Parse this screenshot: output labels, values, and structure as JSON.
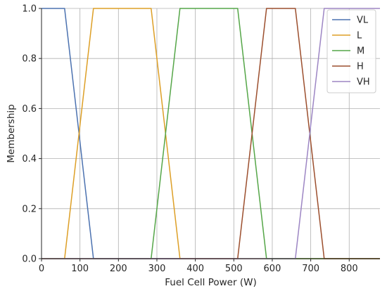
{
  "chart_data": {
    "type": "line",
    "title": "",
    "xlabel": "Fuel Cell Power (W)",
    "ylabel": "Membership",
    "xlim": [
      0,
      880
    ],
    "ylim": [
      0,
      1.0
    ],
    "xticks": [
      0,
      100,
      200,
      300,
      400,
      500,
      600,
      700,
      800
    ],
    "yticks": [
      0.0,
      0.2,
      0.4,
      0.6,
      0.8,
      1.0
    ],
    "xtick_labels": [
      "0",
      "100",
      "200",
      "300",
      "400",
      "500",
      "600",
      "700",
      "800"
    ],
    "ytick_labels": [
      "0.0",
      "0.2",
      "0.4",
      "0.6",
      "0.8",
      "1.0"
    ],
    "grid": true,
    "legend_position": "top-right",
    "series": [
      {
        "name": "VL",
        "color": "#4c72b0",
        "x": [
          0,
          60,
          135,
          880
        ],
        "y": [
          1,
          1,
          0,
          0
        ]
      },
      {
        "name": "L",
        "color": "#dd9f26",
        "x": [
          0,
          60,
          135,
          285,
          360,
          880
        ],
        "y": [
          0,
          0,
          1,
          1,
          0,
          0
        ]
      },
      {
        "name": "M",
        "color": "#55a648",
        "x": [
          0,
          285,
          360,
          510,
          585,
          880
        ],
        "y": [
          0,
          0,
          1,
          1,
          0,
          0
        ]
      },
      {
        "name": "H",
        "color": "#9c4f2e",
        "x": [
          0,
          510,
          585,
          660,
          735,
          880
        ],
        "y": [
          0,
          0,
          1,
          1,
          0,
          0
        ]
      },
      {
        "name": "VH",
        "color": "#9d86c4",
        "x": [
          0,
          660,
          735,
          880
        ],
        "y": [
          0,
          0,
          1,
          1
        ]
      }
    ]
  }
}
